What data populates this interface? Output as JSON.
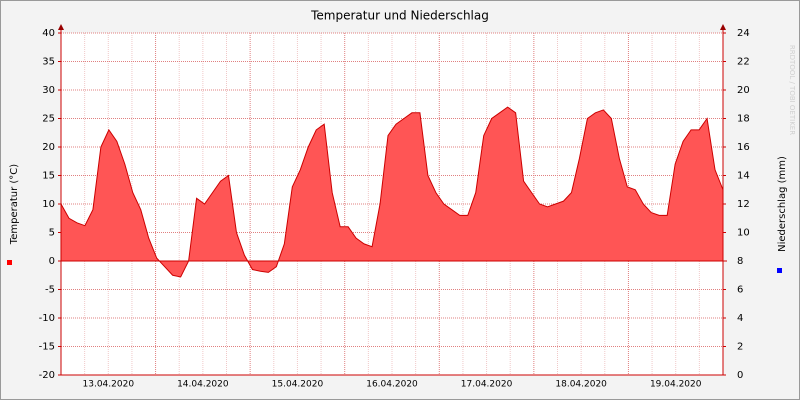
{
  "chart_data": {
    "type": "area",
    "title": "Temperatur und Niederschlag",
    "y_label": "Temperatur (°C)",
    "y2_label": "Niederschlag (mm)",
    "watermark": "RRDTOOL / TOBI OETIKER",
    "x_labels": [
      "13.04.2020",
      "14.04.2020",
      "15.04.2020",
      "16.04.2020",
      "17.04.2020",
      "18.04.2020",
      "19.04.2020"
    ],
    "series": [
      {
        "name": "Temperatur",
        "color": "#ff5555",
        "line_color": "#cc0000",
        "values": [
          10,
          7.5,
          6.7,
          6.2,
          9,
          20,
          23,
          21,
          17,
          12,
          9,
          4,
          0.5,
          -1,
          -2.5,
          -2.8,
          0,
          11,
          10,
          12,
          14,
          15,
          5,
          1,
          -1.5,
          -1.8,
          -2,
          -1,
          3,
          13,
          16,
          20,
          23,
          24,
          12,
          6,
          6,
          4,
          3,
          2.5,
          10,
          22,
          24,
          25,
          26,
          26,
          15,
          12,
          10,
          9,
          8,
          8,
          12,
          22,
          25,
          26,
          27,
          26,
          14,
          12,
          10,
          9.5,
          10,
          10.5,
          12,
          18,
          25,
          26,
          26.5,
          25,
          18,
          13,
          12.5,
          10,
          8.5,
          8,
          8,
          17,
          21,
          23,
          23,
          25,
          16,
          12.5
        ]
      }
    ],
    "y_color": "#ff0000",
    "y2_color": "#0000ff",
    "ylim": [
      -20,
      40
    ],
    "yticks": [
      -20,
      -15,
      -10,
      -5,
      0,
      5,
      10,
      15,
      20,
      25,
      30,
      35,
      40
    ],
    "y2lim": [
      0,
      24
    ],
    "y2ticks": [
      0,
      2,
      4,
      6,
      8,
      10,
      12,
      14,
      16,
      18,
      20,
      22,
      24
    ],
    "grid": true
  }
}
